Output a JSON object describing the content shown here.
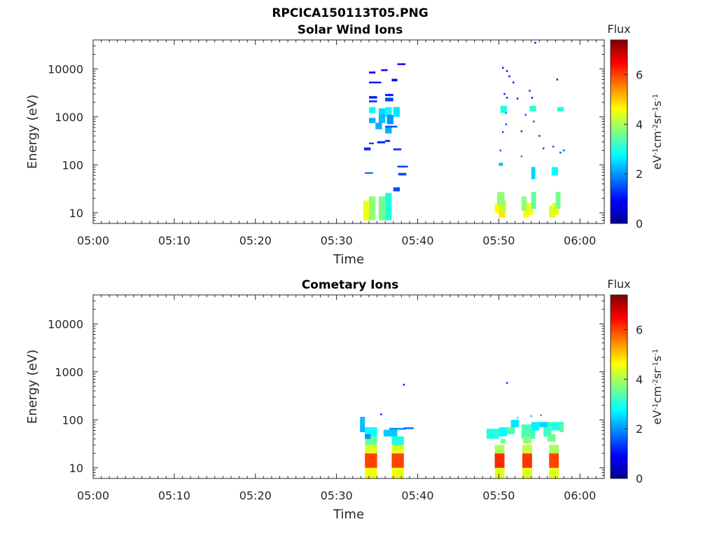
{
  "figure": {
    "title": "RPCICA150113T05.PNG"
  },
  "colormap": {
    "name": "jet",
    "stops": [
      "#00008f",
      "#0000ff",
      "#0080ff",
      "#00ffff",
      "#80ff80",
      "#ffff00",
      "#ff8000",
      "#ff0000",
      "#800000"
    ]
  },
  "chart_data": [
    {
      "type": "heatmap",
      "title": "Solar Wind Ions",
      "xlabel": "Time",
      "ylabel": "Energy (eV)",
      "x_ticks": [
        "05:00",
        "05:10",
        "05:20",
        "05:30",
        "05:40",
        "05:50",
        "06:00"
      ],
      "x_tick_minutes": [
        0,
        10,
        20,
        30,
        40,
        50,
        60
      ],
      "xlim_minutes": [
        0,
        63
      ],
      "y_scale": "log",
      "ylim": [
        6,
        40000
      ],
      "y_ticks": [
        10,
        100,
        1000,
        10000
      ],
      "y_tick_labels": [
        "10",
        "100",
        "1000",
        "10000"
      ],
      "colorbar": {
        "title": "Flux",
        "unit_parts": [
          "eV",
          "-1",
          "cm",
          "-2",
          "sr",
          "-1",
          "s",
          "-1"
        ],
        "range": [
          0,
          7.4
        ],
        "ticks": [
          0,
          2,
          4,
          6
        ],
        "tick_labels": [
          "0",
          "2",
          "4",
          "6"
        ]
      },
      "cells": [
        [
          33.3,
          34.0,
          7,
          18,
          4.5
        ],
        [
          34.0,
          34.8,
          7,
          22,
          3.8
        ],
        [
          35.2,
          36.0,
          7,
          22,
          3.6
        ],
        [
          36.0,
          36.8,
          7,
          26,
          3.0
        ],
        [
          34.0,
          34.8,
          740,
          950,
          2.2
        ],
        [
          35.2,
          36.0,
          740,
          1250,
          2.3
        ],
        [
          36.0,
          36.8,
          1000,
          1600,
          2.8
        ],
        [
          36.2,
          37.0,
          700,
          1100,
          2.0
        ],
        [
          34.0,
          34.8,
          1200,
          1600,
          2.8
        ],
        [
          35.2,
          36.0,
          1100,
          1500,
          2.5
        ],
        [
          34.8,
          35.6,
          550,
          750,
          2.2
        ],
        [
          37.0,
          37.8,
          1000,
          1600,
          2.6
        ],
        [
          36.0,
          36.8,
          450,
          650,
          2.2
        ],
        [
          34.0,
          34.8,
          8000,
          8800,
          0.8
        ],
        [
          35.5,
          36.3,
          9000,
          9800,
          0.9
        ],
        [
          36.8,
          37.5,
          5500,
          6200,
          1.0
        ],
        [
          37.5,
          38.5,
          12000,
          13000,
          0.8
        ],
        [
          34.0,
          35.5,
          5000,
          5400,
          0.8
        ],
        [
          34.0,
          35.0,
          2400,
          2700,
          1.1
        ],
        [
          34.0,
          35.0,
          2000,
          2200,
          1.3
        ],
        [
          36.0,
          37.0,
          2100,
          2500,
          1.4
        ],
        [
          36.0,
          37.0,
          2700,
          3000,
          1.1
        ],
        [
          36.0,
          37.5,
          600,
          650,
          1.5
        ],
        [
          33.4,
          34.2,
          200,
          230,
          1.2
        ],
        [
          34.0,
          34.6,
          270,
          290,
          1.2
        ],
        [
          35.0,
          36.0,
          280,
          310,
          1.2
        ],
        [
          36.0,
          36.6,
          300,
          330,
          1.2
        ],
        [
          37.0,
          38.0,
          200,
          220,
          1.3
        ],
        [
          33.5,
          34.5,
          65,
          70,
          1.7
        ],
        [
          37.6,
          38.6,
          60,
          68,
          1.5
        ],
        [
          37.5,
          38.8,
          88,
          96,
          1.4
        ],
        [
          37.0,
          37.8,
          28,
          34,
          1.5
        ],
        [
          49.5,
          50.2,
          10,
          16,
          4.6
        ],
        [
          50.0,
          50.8,
          8,
          14,
          4.8
        ],
        [
          50.4,
          50.9,
          10,
          18,
          4.2
        ],
        [
          49.8,
          50.7,
          14,
          27,
          3.8
        ],
        [
          53.0,
          53.8,
          8,
          14,
          4.6
        ],
        [
          53.4,
          54.2,
          9,
          16,
          4.5
        ],
        [
          52.8,
          53.4,
          11,
          22,
          3.8
        ],
        [
          54.0,
          54.6,
          12,
          27,
          3.5
        ],
        [
          56.2,
          57.0,
          8,
          14,
          4.3
        ],
        [
          56.6,
          57.4,
          9,
          16,
          4.5
        ],
        [
          57.0,
          57.6,
          12,
          27,
          3.6
        ],
        [
          50.2,
          51.0,
          1200,
          1700,
          3.0
        ],
        [
          53.8,
          54.6,
          1300,
          1700,
          3.1
        ],
        [
          57.2,
          58.0,
          1300,
          1600,
          3.0
        ],
        [
          56.5,
          57.3,
          60,
          90,
          2.8
        ],
        [
          54.0,
          54.5,
          50,
          90,
          2.5
        ],
        [
          50.0,
          50.5,
          95,
          110,
          2.3
        ]
      ],
      "points": [
        [
          50.5,
          10500,
          1.0
        ],
        [
          51.0,
          9000,
          1.0
        ],
        [
          51.3,
          7000,
          1.0
        ],
        [
          51.8,
          5200,
          1.0
        ],
        [
          50.7,
          3000,
          1.2
        ],
        [
          51.0,
          2500,
          1.1
        ],
        [
          52.3,
          2400,
          1.2
        ],
        [
          53.8,
          3500,
          1.3
        ],
        [
          54.1,
          2500,
          1.1
        ],
        [
          57.2,
          6000,
          1.0
        ],
        [
          50.9,
          1200,
          1.8
        ],
        [
          53.3,
          1100,
          1.5
        ],
        [
          50.5,
          480,
          1.4
        ],
        [
          52.8,
          500,
          1.3
        ],
        [
          55.0,
          400,
          1.3
        ],
        [
          50.2,
          200,
          1.6
        ],
        [
          55.5,
          220,
          1.3
        ],
        [
          57.6,
          180,
          1.5
        ],
        [
          52.8,
          150,
          2.0
        ],
        [
          54.5,
          35000,
          0.8
        ],
        [
          56.7,
          240,
          1.5
        ],
        [
          58.0,
          200,
          1.5
        ],
        [
          50.9,
          700,
          1.5
        ],
        [
          54.3,
          800,
          1.6
        ]
      ]
    },
    {
      "type": "heatmap",
      "title": "Cometary Ions",
      "xlabel": "Time",
      "ylabel": "Energy (eV)",
      "x_ticks": [
        "05:00",
        "05:10",
        "05:20",
        "05:30",
        "05:40",
        "05:50",
        "06:00"
      ],
      "x_tick_minutes": [
        0,
        10,
        20,
        30,
        40,
        50,
        60
      ],
      "xlim_minutes": [
        0,
        63
      ],
      "y_scale": "log",
      "ylim": [
        6,
        40000
      ],
      "y_ticks": [
        10,
        100,
        1000,
        10000
      ],
      "y_tick_labels": [
        "10",
        "100",
        "1000",
        "10000"
      ],
      "colorbar": {
        "title": "Flux",
        "unit_parts": [
          "eV",
          "-1",
          "cm",
          "-2",
          "sr",
          "-1",
          "s",
          "-1"
        ],
        "range": [
          0,
          7.4
        ],
        "ticks": [
          0,
          2,
          4,
          6
        ],
        "tick_labels": [
          "0",
          "2",
          "4",
          "6"
        ]
      },
      "cells": [
        [
          33.5,
          35.0,
          6,
          10,
          4.5
        ],
        [
          33.5,
          35.0,
          10,
          20,
          6.0
        ],
        [
          33.5,
          35.0,
          20,
          30,
          4.4
        ],
        [
          33.5,
          35.0,
          30,
          45,
          3.5
        ],
        [
          33.5,
          35.0,
          45,
          70,
          2.8
        ],
        [
          32.9,
          33.5,
          55,
          115,
          2.3
        ],
        [
          33.5,
          34.2,
          40,
          50,
          2.0
        ],
        [
          36.8,
          38.3,
          6,
          10,
          4.5
        ],
        [
          36.8,
          38.3,
          10,
          20,
          6.0
        ],
        [
          36.8,
          38.3,
          20,
          30,
          4.4
        ],
        [
          36.8,
          38.3,
          30,
          45,
          3.0
        ],
        [
          35.8,
          37.5,
          45,
          62,
          2.4
        ],
        [
          36.5,
          38.5,
          62,
          68,
          2.0
        ],
        [
          38.3,
          39.5,
          64,
          70,
          1.8
        ],
        [
          49.5,
          50.7,
          6,
          10,
          4.4
        ],
        [
          49.5,
          50.7,
          10,
          20,
          6.2
        ],
        [
          49.5,
          50.7,
          20,
          30,
          4.0
        ],
        [
          52.9,
          54.1,
          6,
          10,
          4.4
        ],
        [
          52.9,
          54.1,
          10,
          20,
          6.1
        ],
        [
          52.9,
          54.1,
          20,
          30,
          4.2
        ],
        [
          56.2,
          57.4,
          6,
          10,
          4.4
        ],
        [
          56.2,
          57.4,
          10,
          20,
          6.0
        ],
        [
          56.2,
          57.4,
          20,
          30,
          4.0
        ],
        [
          48.5,
          50.0,
          40,
          65,
          3.0
        ],
        [
          50.0,
          51.0,
          45,
          70,
          2.8
        ],
        [
          52.8,
          54.5,
          40,
          80,
          3.3
        ],
        [
          54.0,
          55.0,
          60,
          90,
          2.7
        ],
        [
          55.5,
          56.5,
          45,
          90,
          3.2
        ],
        [
          56.5,
          58.0,
          60,
          90,
          3.0
        ],
        [
          51.5,
          52.5,
          70,
          100,
          2.6
        ],
        [
          51.0,
          52.0,
          50,
          70,
          3.4
        ],
        [
          55.0,
          56.0,
          70,
          90,
          2.5
        ],
        [
          56.0,
          57.0,
          35,
          50,
          3.6
        ],
        [
          53.0,
          54.0,
          32,
          45,
          3.8
        ],
        [
          50.2,
          50.8,
          32,
          40,
          3.6
        ],
        [
          57.5,
          58.0,
          55,
          80,
          3.4
        ]
      ],
      "points": [
        [
          38.3,
          540,
          1.0
        ],
        [
          51.0,
          590,
          1.3
        ],
        [
          35.5,
          130,
          1.2
        ],
        [
          54.0,
          120,
          2.4
        ],
        [
          55.2,
          125,
          2.2
        ],
        [
          52.3,
          110,
          2.6
        ],
        [
          57.7,
          88,
          3.2
        ]
      ]
    }
  ]
}
